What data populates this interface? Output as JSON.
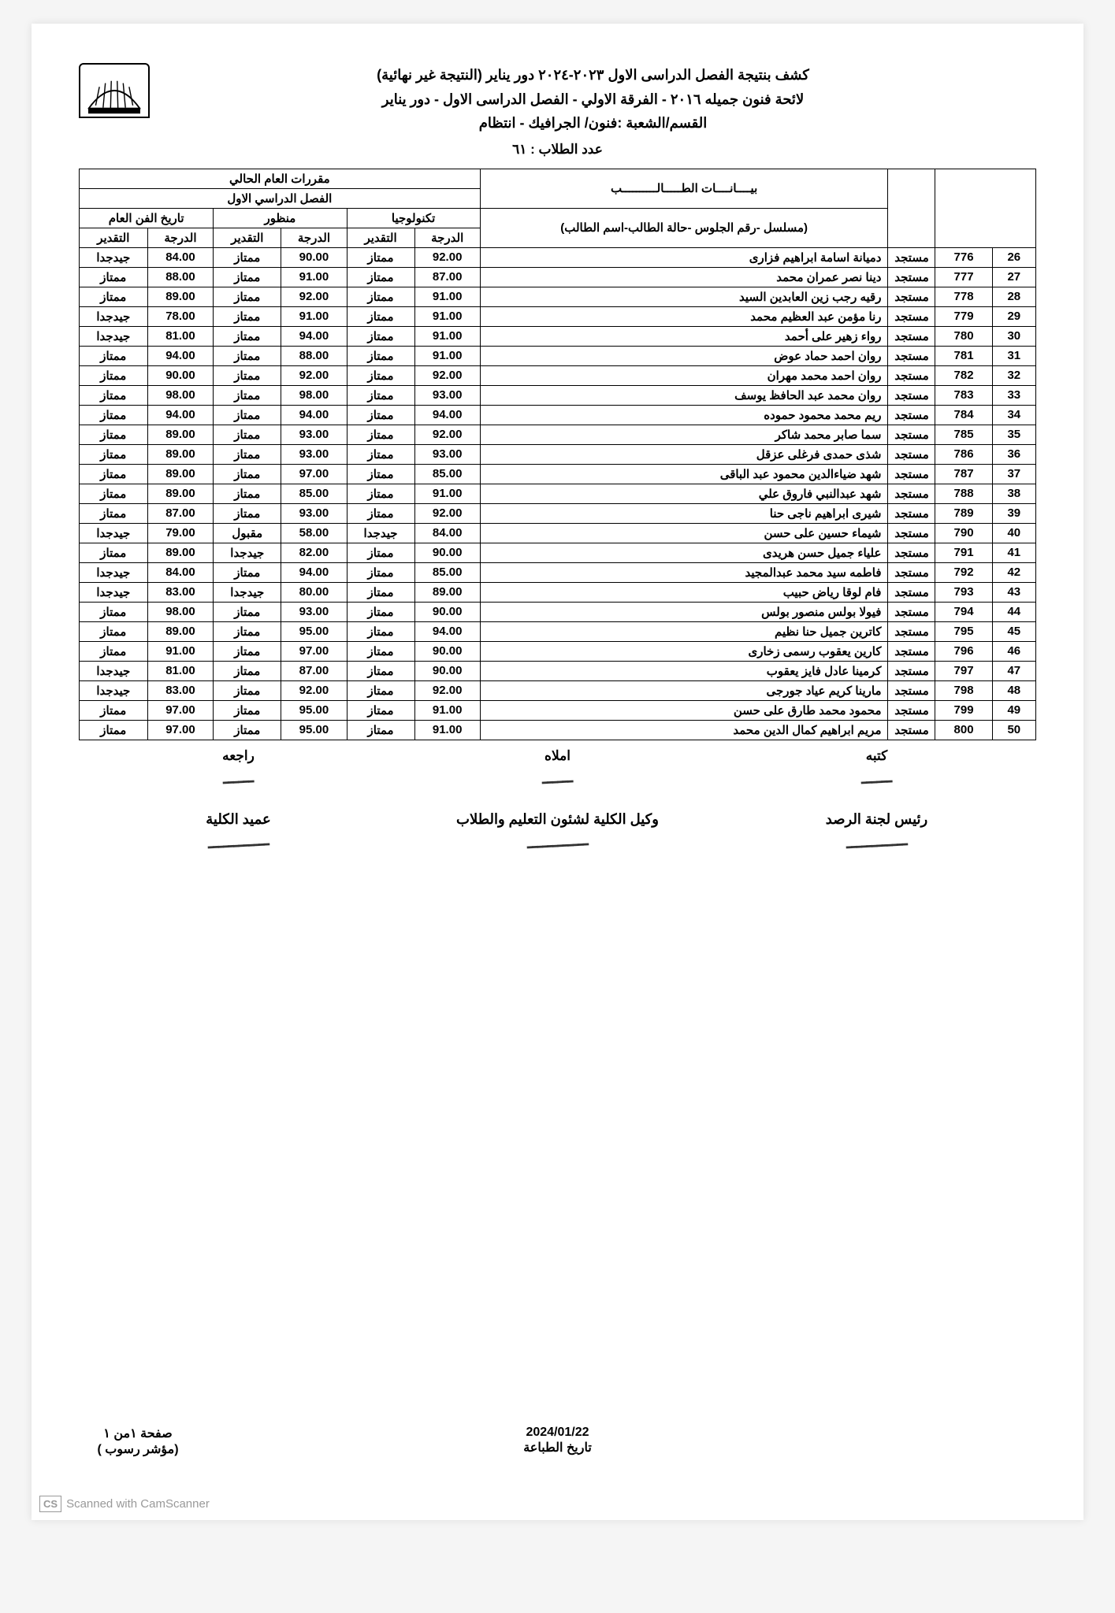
{
  "header": {
    "line1": "كشف بنتيجة الفصل الدراسى الاول ٢٠٢٣-٢٠٢٤ دور يناير (النتيجة غير نهائية)",
    "line2": "لائحة فنون جميله ٢٠١٦ - الفرقة الاولي - الفصل الدراسى الاول - دور يناير",
    "line3": "القسم/الشعبة :فنون/ الجرافيك - انتظام",
    "count_label": "عدد الطلاب : ٦١"
  },
  "table_headers": {
    "super_right": "بيــــانــــات الطـــــالــــــــــب",
    "super_right_sub": "(مسلسل -رقم الجلوس -حالة الطالب-اسم الطالب)",
    "super_left": "مقررات العام الحالي",
    "semester": "الفصل الدراسي الاول",
    "sub1": "تكنولوجيا",
    "sub2": "منظور",
    "sub3": "تاريخ الفن العام",
    "grade": "الدرجة",
    "rating": "التقدير"
  },
  "rows": [
    {
      "n": "26",
      "id": "776",
      "st": "مستجد",
      "name": "دميانة اسامة ابراهيم فزارى",
      "g1": "92.00",
      "r1": "ممتاز",
      "g2": "90.00",
      "r2": "ممتاز",
      "g3": "84.00",
      "r3": "جيدجدا"
    },
    {
      "n": "27",
      "id": "777",
      "st": "مستجد",
      "name": "دينا نصر عمران محمد",
      "g1": "87.00",
      "r1": "ممتاز",
      "g2": "91.00",
      "r2": "ممتاز",
      "g3": "88.00",
      "r3": "ممتاز"
    },
    {
      "n": "28",
      "id": "778",
      "st": "مستجد",
      "name": "رقيه رجب زين العابدين السيد",
      "g1": "91.00",
      "r1": "ممتاز",
      "g2": "92.00",
      "r2": "ممتاز",
      "g3": "89.00",
      "r3": "ممتاز"
    },
    {
      "n": "29",
      "id": "779",
      "st": "مستجد",
      "name": "رنا مؤمن عبد العظيم محمد",
      "g1": "91.00",
      "r1": "ممتاز",
      "g2": "91.00",
      "r2": "ممتاز",
      "g3": "78.00",
      "r3": "جيدجدا"
    },
    {
      "n": "30",
      "id": "780",
      "st": "مستجد",
      "name": "رواء زهير على أحمد",
      "g1": "91.00",
      "r1": "ممتاز",
      "g2": "94.00",
      "r2": "ممتاز",
      "g3": "81.00",
      "r3": "جيدجدا"
    },
    {
      "n": "31",
      "id": "781",
      "st": "مستجد",
      "name": "روان احمد حماد عوض",
      "g1": "91.00",
      "r1": "ممتاز",
      "g2": "88.00",
      "r2": "ممتاز",
      "g3": "94.00",
      "r3": "ممتاز"
    },
    {
      "n": "32",
      "id": "782",
      "st": "مستجد",
      "name": "روان احمد محمد مهران",
      "g1": "92.00",
      "r1": "ممتاز",
      "g2": "92.00",
      "r2": "ممتاز",
      "g3": "90.00",
      "r3": "ممتاز"
    },
    {
      "n": "33",
      "id": "783",
      "st": "مستجد",
      "name": "روان محمد عبد الحافظ يوسف",
      "g1": "93.00",
      "r1": "ممتاز",
      "g2": "98.00",
      "r2": "ممتاز",
      "g3": "98.00",
      "r3": "ممتاز"
    },
    {
      "n": "34",
      "id": "784",
      "st": "مستجد",
      "name": "ريم محمد محمود حموده",
      "g1": "94.00",
      "r1": "ممتاز",
      "g2": "94.00",
      "r2": "ممتاز",
      "g3": "94.00",
      "r3": "ممتاز"
    },
    {
      "n": "35",
      "id": "785",
      "st": "مستجد",
      "name": "سما صابر محمد شاكر",
      "g1": "92.00",
      "r1": "ممتاز",
      "g2": "93.00",
      "r2": "ممتاز",
      "g3": "89.00",
      "r3": "ممتاز"
    },
    {
      "n": "36",
      "id": "786",
      "st": "مستجد",
      "name": "شذى حمدى فرغلى عزقل",
      "g1": "93.00",
      "r1": "ممتاز",
      "g2": "93.00",
      "r2": "ممتاز",
      "g3": "89.00",
      "r3": "ممتاز"
    },
    {
      "n": "37",
      "id": "787",
      "st": "مستجد",
      "name": "شهد ضياءالدين محمود عبد الباقى",
      "g1": "85.00",
      "r1": "ممتاز",
      "g2": "97.00",
      "r2": "ممتاز",
      "g3": "89.00",
      "r3": "ممتاز"
    },
    {
      "n": "38",
      "id": "788",
      "st": "مستجد",
      "name": "شهد عبدالنبي فاروق علي",
      "g1": "91.00",
      "r1": "ممتاز",
      "g2": "85.00",
      "r2": "ممتاز",
      "g3": "89.00",
      "r3": "ممتاز"
    },
    {
      "n": "39",
      "id": "789",
      "st": "مستجد",
      "name": "شيرى ابراهيم ناجى حنا",
      "g1": "92.00",
      "r1": "ممتاز",
      "g2": "93.00",
      "r2": "ممتاز",
      "g3": "87.00",
      "r3": "ممتاز"
    },
    {
      "n": "40",
      "id": "790",
      "st": "مستجد",
      "name": "شيماء حسين على حسن",
      "g1": "84.00",
      "r1": "جيدجدا",
      "g2": "58.00",
      "r2": "مقبول",
      "g3": "79.00",
      "r3": "جيدجدا"
    },
    {
      "n": "41",
      "id": "791",
      "st": "مستجد",
      "name": "علياء جميل حسن هريدى",
      "g1": "90.00",
      "r1": "ممتاز",
      "g2": "82.00",
      "r2": "جيدجدا",
      "g3": "89.00",
      "r3": "ممتاز"
    },
    {
      "n": "42",
      "id": "792",
      "st": "مستجد",
      "name": "فاطمه سيد محمد عبدالمجيد",
      "g1": "85.00",
      "r1": "ممتاز",
      "g2": "94.00",
      "r2": "ممتاز",
      "g3": "84.00",
      "r3": "جيدجدا"
    },
    {
      "n": "43",
      "id": "793",
      "st": "مستجد",
      "name": "فام لوقا رياض حبيب",
      "g1": "89.00",
      "r1": "ممتاز",
      "g2": "80.00",
      "r2": "جيدجدا",
      "g3": "83.00",
      "r3": "جيدجدا"
    },
    {
      "n": "44",
      "id": "794",
      "st": "مستجد",
      "name": "فيولا بولس منصور بولس",
      "g1": "90.00",
      "r1": "ممتاز",
      "g2": "93.00",
      "r2": "ممتاز",
      "g3": "98.00",
      "r3": "ممتاز"
    },
    {
      "n": "45",
      "id": "795",
      "st": "مستجد",
      "name": "كاترين جميل حنا نظيم",
      "g1": "94.00",
      "r1": "ممتاز",
      "g2": "95.00",
      "r2": "ممتاز",
      "g3": "89.00",
      "r3": "ممتاز"
    },
    {
      "n": "46",
      "id": "796",
      "st": "مستجد",
      "name": "كارين يعقوب رسمى زخارى",
      "g1": "90.00",
      "r1": "ممتاز",
      "g2": "97.00",
      "r2": "ممتاز",
      "g3": "91.00",
      "r3": "ممتاز"
    },
    {
      "n": "47",
      "id": "797",
      "st": "مستجد",
      "name": "كرمينا عادل فايز يعقوب",
      "g1": "90.00",
      "r1": "ممتاز",
      "g2": "87.00",
      "r2": "ممتاز",
      "g3": "81.00",
      "r3": "جيدجدا"
    },
    {
      "n": "48",
      "id": "798",
      "st": "مستجد",
      "name": "مارينا كريم عياد جورجى",
      "g1": "92.00",
      "r1": "ممتاز",
      "g2": "92.00",
      "r2": "ممتاز",
      "g3": "83.00",
      "r3": "جيدجدا"
    },
    {
      "n": "49",
      "id": "799",
      "st": "مستجد",
      "name": "محمود محمد طارق على حسن",
      "g1": "91.00",
      "r1": "ممتاز",
      "g2": "95.00",
      "r2": "ممتاز",
      "g3": "97.00",
      "r3": "ممتاز"
    },
    {
      "n": "50",
      "id": "800",
      "st": "مستجد",
      "name": "مريم ابراهيم كمال الدين محمد",
      "g1": "91.00",
      "r1": "ممتاز",
      "g2": "95.00",
      "r2": "ممتاز",
      "g3": "97.00",
      "r3": "ممتاز"
    }
  ],
  "signatures": {
    "s1": "كتبه",
    "s2": "املاه",
    "s3": "راجعه",
    "r1": "رئيس لجنة الرصد",
    "r2": "وكيل الكلية لشئون التعليم والطلاب",
    "r3": "عميد الكلية"
  },
  "footer": {
    "date": "2024/01/22",
    "date_label": "تاريخ الطباعة",
    "page": "صفحة ١من ١",
    "note": "(مؤشر رسوب )"
  },
  "camscanner": {
    "badge": "CS",
    "text": "Scanned with CamScanner"
  },
  "colors": {
    "border": "#000000",
    "text": "#000000",
    "bg": "#ffffff",
    "watermark": "#999999"
  }
}
